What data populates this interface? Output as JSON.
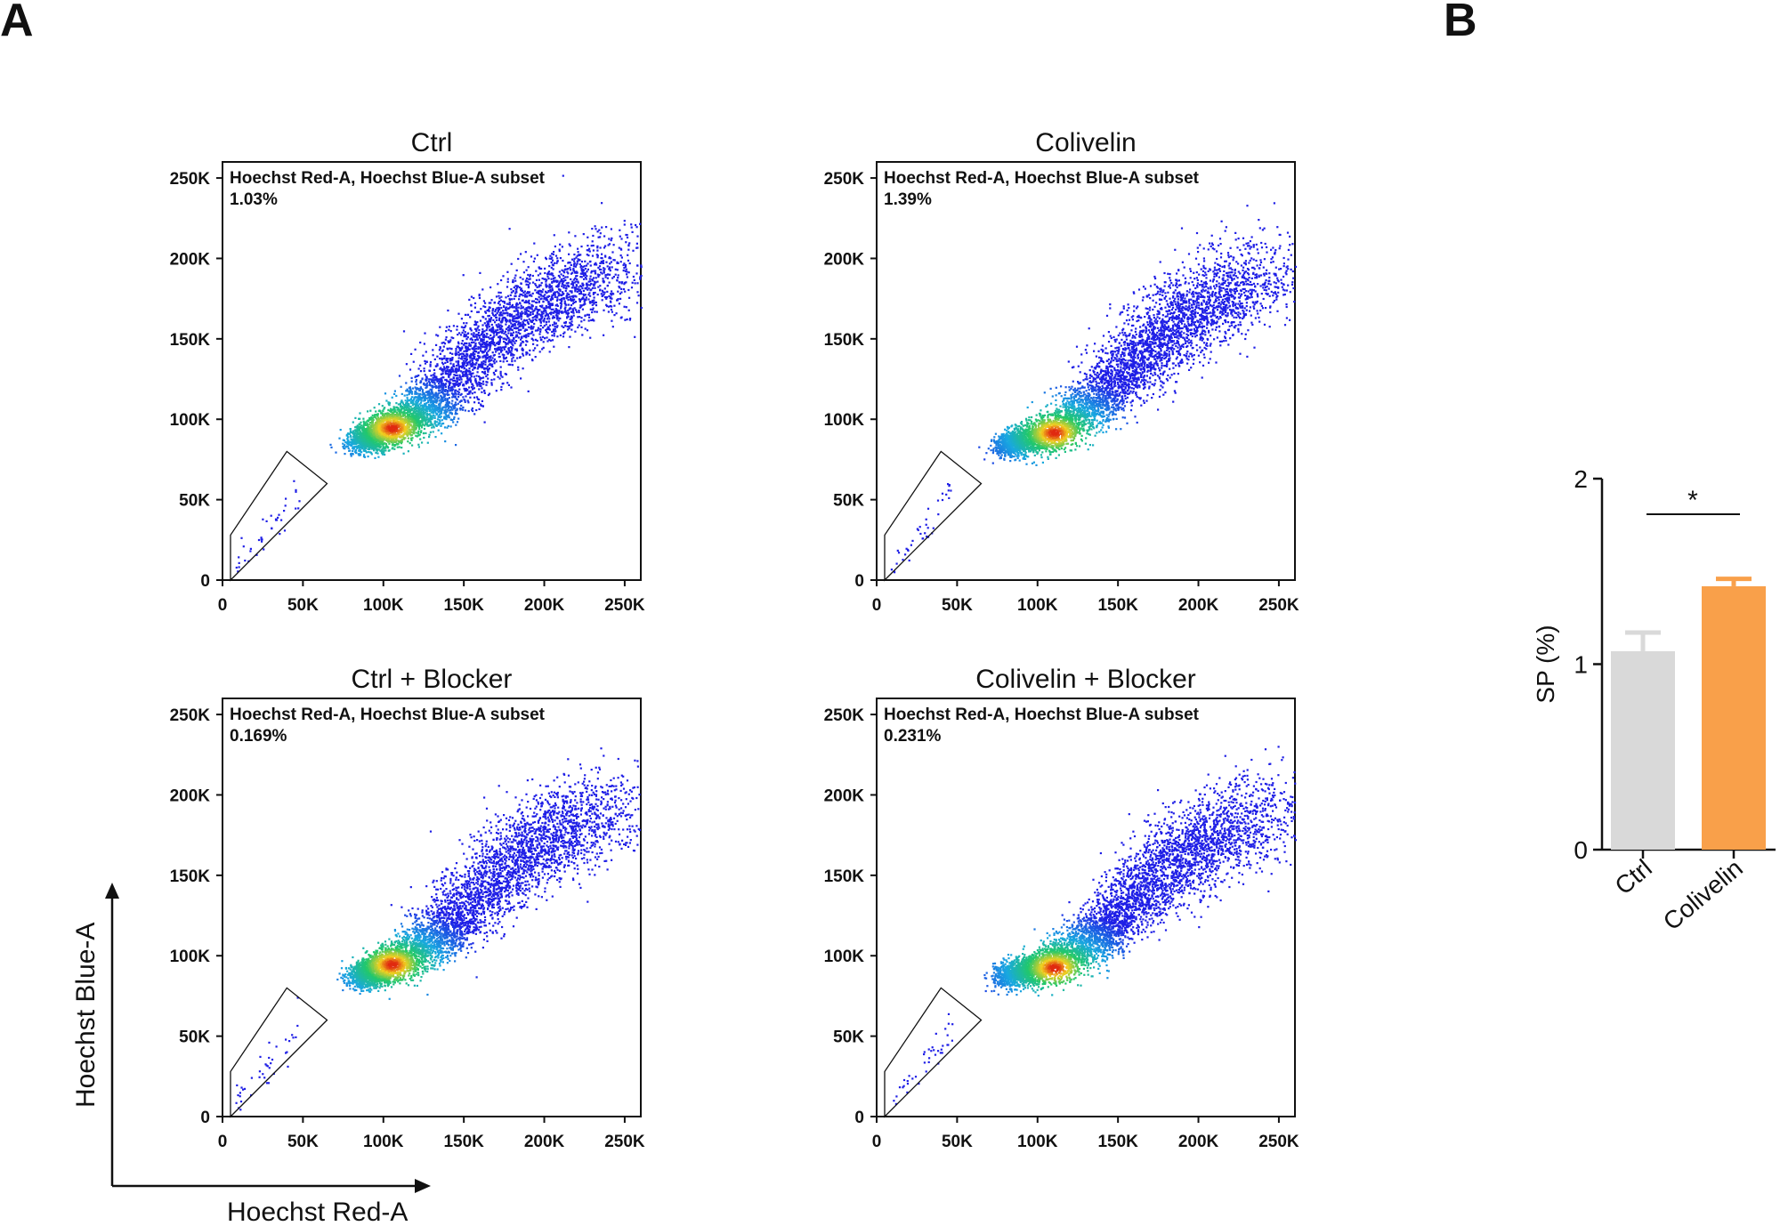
{
  "panel_labels": {
    "a": "A",
    "b": "B"
  },
  "axis_titles": {
    "x": "Hoechst Red-A",
    "y": "Hoechst Blue-A"
  },
  "colors": {
    "low": "#1f1fe6",
    "mid": "#22c86a",
    "high": "#e02a10",
    "bar_ctrl": "#d9d9d9",
    "bar_colivelin": "#f9a04a"
  },
  "chart_data": [
    {
      "type": "scatter",
      "title": "Ctrl",
      "gate_label": "Hoechst Red-A, Hoechst Blue-A subset",
      "gate_percent": "1.03%",
      "xlabel": "",
      "ylabel": "",
      "xlim": [
        0,
        260000
      ],
      "ylim": [
        0,
        260000
      ],
      "x_ticks": [
        "0",
        "50K",
        "100K",
        "150K",
        "200K",
        "250K"
      ],
      "y_ticks": [
        "0",
        "50K",
        "100K",
        "150K",
        "200K",
        "250K"
      ],
      "density_trend": [
        [
          85000,
          88000
        ],
        [
          105000,
          95000
        ],
        [
          130000,
          110000
        ],
        [
          160000,
          145000
        ],
        [
          200000,
          175000
        ],
        [
          240000,
          195000
        ]
      ],
      "density_peak": [
        105000,
        95000
      ]
    },
    {
      "type": "scatter",
      "title": "Colivelin",
      "gate_label": "Hoechst Red-A, Hoechst Blue-A subset",
      "gate_percent": "1.39%",
      "xlabel": "",
      "ylabel": "",
      "xlim": [
        0,
        260000
      ],
      "ylim": [
        0,
        260000
      ],
      "x_ticks": [
        "0",
        "50K",
        "100K",
        "150K",
        "200K",
        "250K"
      ],
      "y_ticks": [
        "0",
        "50K",
        "100K",
        "150K",
        "200K",
        "250K"
      ],
      "density_trend": [
        [
          80000,
          85000
        ],
        [
          110000,
          92000
        ],
        [
          140000,
          115000
        ],
        [
          170000,
          145000
        ],
        [
          200000,
          172000
        ],
        [
          240000,
          190000
        ]
      ],
      "density_peak": [
        110000,
        92000
      ]
    },
    {
      "type": "scatter",
      "title": "Ctrl + Blocker",
      "gate_label": "Hoechst Red-A, Hoechst Blue-A subset",
      "gate_percent": "0.169%",
      "xlabel": "",
      "ylabel": "",
      "xlim": [
        0,
        260000
      ],
      "ylim": [
        0,
        260000
      ],
      "x_ticks": [
        "0",
        "50K",
        "100K",
        "150K",
        "200K",
        "250K"
      ],
      "y_ticks": [
        "0",
        "50K",
        "100K",
        "150K",
        "200K",
        "250K"
      ],
      "density_trend": [
        [
          85000,
          88000
        ],
        [
          105000,
          95000
        ],
        [
          135000,
          112000
        ],
        [
          165000,
          145000
        ],
        [
          200000,
          175000
        ],
        [
          240000,
          190000
        ]
      ],
      "density_peak": [
        105000,
        95000
      ]
    },
    {
      "type": "scatter",
      "title": "Colivelin + Blocker",
      "gate_label": "Hoechst Red-A, Hoechst Blue-A subset",
      "gate_percent": "0.231%",
      "xlabel": "",
      "ylabel": "",
      "xlim": [
        0,
        260000
      ],
      "ylim": [
        0,
        260000
      ],
      "x_ticks": [
        "0",
        "50K",
        "100K",
        "150K",
        "200K",
        "250K"
      ],
      "y_ticks": [
        "0",
        "50K",
        "100K",
        "150K",
        "200K",
        "250K"
      ],
      "density_trend": [
        [
          80000,
          88000
        ],
        [
          110000,
          95000
        ],
        [
          140000,
          115000
        ],
        [
          170000,
          145000
        ],
        [
          200000,
          172000
        ],
        [
          240000,
          190000
        ]
      ],
      "density_peak": [
        110000,
        93000
      ]
    },
    {
      "type": "bar",
      "categories": [
        "Ctrl",
        "Colivelin"
      ],
      "values": [
        1.07,
        1.42
      ],
      "errors": [
        0.1,
        0.04
      ],
      "ylabel": "SP (%)",
      "ylim": [
        0,
        2
      ],
      "y_ticks": [
        "0",
        "1",
        "2"
      ],
      "significance": "*"
    }
  ]
}
